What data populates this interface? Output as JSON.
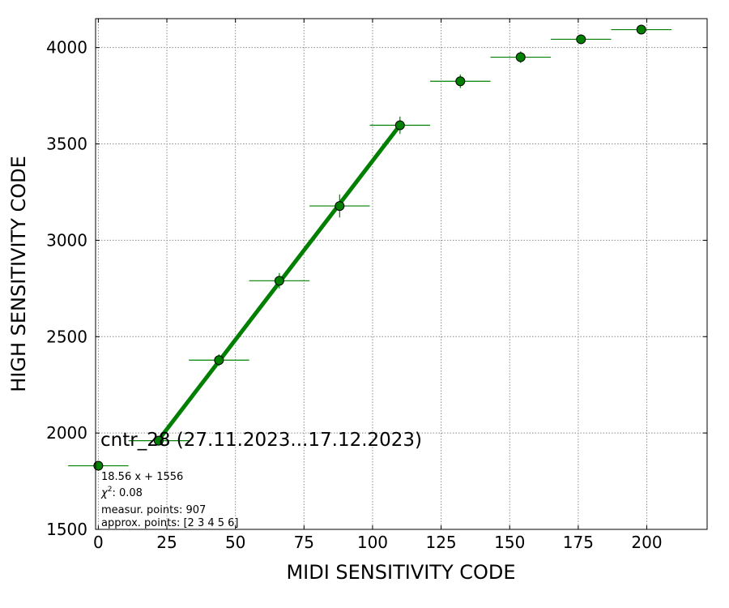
{
  "chart_data": {
    "type": "scatter",
    "title": "cntr_28 (27.11.2023...17.12.2023)",
    "xlabel": "MIDI SENSITIVITY CODE",
    "ylabel": "HIGH SENSITIVITY CODE",
    "xlim": [
      -1,
      222
    ],
    "ylim": [
      1500,
      4150
    ],
    "xticks": [
      0,
      25,
      50,
      75,
      100,
      125,
      150,
      175,
      200
    ],
    "yticks": [
      1500,
      2000,
      2500,
      3000,
      3500,
      4000
    ],
    "grid": true,
    "colors": {
      "points": "#008000",
      "fit": "#007f00",
      "edge": "#000000"
    },
    "points": [
      {
        "x": 0,
        "y": 1830,
        "xerr": 11,
        "yerr": 0
      },
      {
        "x": 22,
        "y": 1960,
        "xerr": 11,
        "yerr": 0
      },
      {
        "x": 44,
        "y": 2378,
        "xerr": 11,
        "yerr": 30
      },
      {
        "x": 66,
        "y": 2790,
        "xerr": 11,
        "yerr": 40
      },
      {
        "x": 88,
        "y": 3178,
        "xerr": 11,
        "yerr": 60
      },
      {
        "x": 110,
        "y": 3597,
        "xerr": 11,
        "yerr": 45
      },
      {
        "x": 132,
        "y": 3825,
        "xerr": 11,
        "yerr": 35
      },
      {
        "x": 154,
        "y": 3950,
        "xerr": 11,
        "yerr": 30
      },
      {
        "x": 176,
        "y": 4043,
        "xerr": 11,
        "yerr": 0
      },
      {
        "x": 198,
        "y": 4093,
        "xerr": 11,
        "yerr": 0
      }
    ],
    "fit": {
      "slope": 18.56,
      "intercept": 1556,
      "x_range": [
        22,
        110
      ]
    },
    "annotations": [
      "18.56 x + 1556",
      ": 0.08",
      "measur. points: 907",
      "approx. points: [2 3 4 5 6]"
    ],
    "chi_label": "χ",
    "chi_sup": "2"
  }
}
